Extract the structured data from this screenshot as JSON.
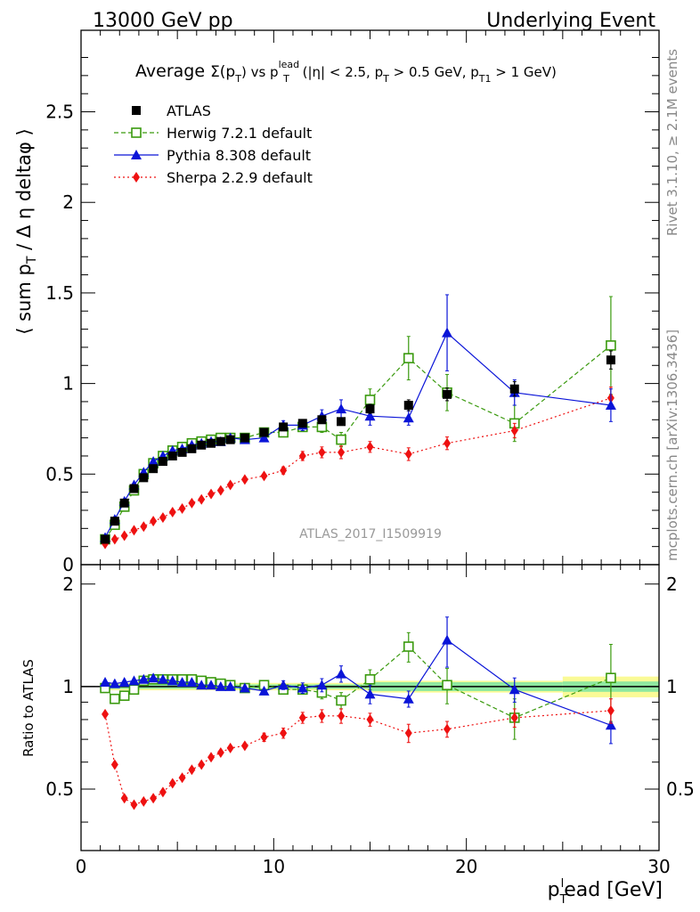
{
  "header": {
    "left": "13000 GeV pp",
    "right": "Underlying Event"
  },
  "side_labels": {
    "rivet": "Rivet 3.1.10, ≥ 2.1M events",
    "mcplots": "mcplots.cern.ch [arXiv:1306.3436]"
  },
  "watermark": "ATLAS_2017_I1509919",
  "colors": {
    "atlas": "#000000",
    "herwig": "#3a9a0e",
    "pythia": "#0a14d8",
    "sherpa": "#ee1111",
    "band_yellow": "#fafa96",
    "band_green": "#8fe8a0"
  },
  "chart_data": [
    {
      "type": "line",
      "title": "Average Σ(pT) vs pT^lead (|η| < 2.5, pT > 0.5 GeV, pT1 > 1 GeV)",
      "title_parts": {
        "avg": "Average ",
        "sigma": "Σ(p",
        "sub_t1": "T",
        "close1": ") vs p",
        "sup_lead": "lead",
        "sub_t2": "T",
        "mid": " (|η| < 2.5, p",
        "sub_t3": "T",
        "mid2": " > 0.5 GeV, p",
        "sub_t4": "T1",
        "end": " > 1 GeV)"
      },
      "ylabel": "⟨ sum pT / Δη deltaφ ⟩",
      "ylabel_parts": {
        "a": "⟨ sum p",
        "sub": "T",
        "b": " / Δ η deltaφ ⟩"
      },
      "xlim": [
        0,
        30
      ],
      "ylim": [
        0,
        2.95
      ],
      "yticks": [
        0,
        0.5,
        1,
        1.5,
        2,
        2.5
      ],
      "ytick_labels": [
        "0",
        "0.5",
        "1",
        "1.5",
        "2",
        "2.5"
      ],
      "legend_position": "top-left",
      "series": [
        {
          "name": "ATLAS",
          "style": "data",
          "x": [
            1.25,
            1.75,
            2.25,
            2.75,
            3.25,
            3.75,
            4.25,
            4.75,
            5.25,
            5.75,
            6.25,
            6.75,
            7.25,
            7.75,
            8.5,
            9.5,
            10.5,
            11.5,
            12.5,
            13.5,
            15,
            17,
            19,
            22.5,
            27.5
          ],
          "y": [
            0.14,
            0.24,
            0.34,
            0.42,
            0.48,
            0.53,
            0.57,
            0.6,
            0.62,
            0.64,
            0.66,
            0.67,
            0.68,
            0.69,
            0.7,
            0.73,
            0.76,
            0.78,
            0.8,
            0.79,
            0.86,
            0.88,
            0.94,
            0.97,
            1.13
          ],
          "err": [
            0.005,
            0.006,
            0.007,
            0.008,
            0.008,
            0.008,
            0.008,
            0.009,
            0.009,
            0.009,
            0.01,
            0.01,
            0.01,
            0.01,
            0.01,
            0.012,
            0.015,
            0.018,
            0.02,
            0.02,
            0.025,
            0.03,
            0.035,
            0.04,
            0.05
          ]
        },
        {
          "name": "Herwig 7.2.1 default",
          "style": "open-square-dashed",
          "x": [
            1.25,
            1.75,
            2.25,
            2.75,
            3.25,
            3.75,
            4.25,
            4.75,
            5.25,
            5.75,
            6.25,
            6.75,
            7.25,
            7.75,
            8.5,
            9.5,
            10.5,
            11.5,
            12.5,
            13.5,
            15,
            17,
            19,
            22.5,
            27.5
          ],
          "y": [
            0.14,
            0.22,
            0.32,
            0.41,
            0.5,
            0.56,
            0.6,
            0.63,
            0.65,
            0.67,
            0.68,
            0.69,
            0.7,
            0.7,
            0.7,
            0.73,
            0.73,
            0.76,
            0.76,
            0.69,
            0.91,
            1.14,
            0.95,
            0.78,
            1.21
          ],
          "err": [
            0.005,
            0.006,
            0.007,
            0.008,
            0.008,
            0.008,
            0.009,
            0.009,
            0.01,
            0.01,
            0.01,
            0.01,
            0.01,
            0.01,
            0.012,
            0.015,
            0.02,
            0.025,
            0.03,
            0.04,
            0.06,
            0.12,
            0.1,
            0.1,
            0.27
          ]
        },
        {
          "name": "Pythia 8.308 default",
          "style": "filled-triangle-solid",
          "x": [
            1.25,
            1.75,
            2.25,
            2.75,
            3.25,
            3.75,
            4.25,
            4.75,
            5.25,
            5.75,
            6.25,
            6.75,
            7.25,
            7.75,
            8.5,
            9.5,
            10.5,
            11.5,
            12.5,
            13.5,
            15,
            17,
            19,
            22.5,
            27.5
          ],
          "y": [
            0.15,
            0.25,
            0.35,
            0.44,
            0.51,
            0.57,
            0.6,
            0.63,
            0.64,
            0.66,
            0.67,
            0.68,
            0.68,
            0.7,
            0.69,
            0.7,
            0.77,
            0.77,
            0.82,
            0.86,
            0.82,
            0.81,
            1.28,
            0.95,
            0.88
          ],
          "err": [
            0.005,
            0.006,
            0.007,
            0.008,
            0.008,
            0.008,
            0.009,
            0.009,
            0.01,
            0.01,
            0.01,
            0.01,
            0.01,
            0.01,
            0.012,
            0.015,
            0.025,
            0.03,
            0.035,
            0.05,
            0.05,
            0.04,
            0.21,
            0.07,
            0.09
          ]
        },
        {
          "name": "Sherpa 2.2.9 default",
          "style": "filled-diamond-dotted",
          "x": [
            1.25,
            1.75,
            2.25,
            2.75,
            3.25,
            3.75,
            4.25,
            4.75,
            5.25,
            5.75,
            6.25,
            6.75,
            7.25,
            7.75,
            8.5,
            9.5,
            10.5,
            11.5,
            12.5,
            13.5,
            15,
            17,
            19,
            22.5,
            27.5
          ],
          "y": [
            0.115,
            0.14,
            0.16,
            0.19,
            0.21,
            0.24,
            0.26,
            0.29,
            0.31,
            0.34,
            0.36,
            0.39,
            0.41,
            0.44,
            0.47,
            0.49,
            0.52,
            0.6,
            0.62,
            0.62,
            0.65,
            0.61,
            0.67,
            0.74,
            0.92
          ],
          "err": [
            0.004,
            0.005,
            0.005,
            0.006,
            0.006,
            0.006,
            0.007,
            0.007,
            0.007,
            0.008,
            0.008,
            0.009,
            0.01,
            0.01,
            0.012,
            0.015,
            0.02,
            0.025,
            0.03,
            0.035,
            0.03,
            0.035,
            0.035,
            0.04,
            0.06
          ]
        }
      ]
    },
    {
      "type": "line",
      "title": "",
      "ylabel": "Ratio to ATLAS",
      "xlabel": "pT lead [GeV]",
      "xlabel_parts": {
        "a": "p",
        "sub": "T",
        "sup": "l",
        "b": "ead [GeV]"
      },
      "xlim": [
        0,
        30
      ],
      "ylim": [
        0.33,
        2.28
      ],
      "yticks": [
        0.5,
        1,
        2
      ],
      "ytick_labels": [
        "0.5",
        "1",
        "2"
      ],
      "xticks": [
        0,
        10,
        20,
        30
      ],
      "xtick_labels": [
        "0",
        "10",
        "20",
        "30"
      ],
      "band": {
        "edges": [
          1,
          15,
          25,
          30
        ],
        "yellow": [
          [
            0.975,
            1.025
          ],
          [
            0.96,
            1.04
          ],
          [
            0.93,
            1.07
          ]
        ],
        "green": [
          [
            0.985,
            1.015
          ],
          [
            0.97,
            1.03
          ],
          [
            0.965,
            1.035
          ]
        ]
      },
      "series": [
        {
          "name": "Herwig 7.2.1 default",
          "x": [
            1.25,
            1.75,
            2.25,
            2.75,
            3.25,
            3.75,
            4.25,
            4.75,
            5.25,
            5.75,
            6.25,
            6.75,
            7.25,
            7.75,
            8.5,
            9.5,
            10.5,
            11.5,
            12.5,
            13.5,
            15,
            17,
            19,
            22.5,
            27.5
          ],
          "y": [
            0.99,
            0.92,
            0.94,
            0.98,
            1.04,
            1.05,
            1.05,
            1.05,
            1.05,
            1.05,
            1.04,
            1.03,
            1.02,
            1.01,
            0.99,
            1.01,
            0.98,
            0.98,
            0.96,
            0.91,
            1.05,
            1.31,
            1.01,
            0.81,
            1.06
          ],
          "err": [
            0.01,
            0.01,
            0.01,
            0.01,
            0.01,
            0.01,
            0.01,
            0.01,
            0.01,
            0.01,
            0.01,
            0.01,
            0.01,
            0.01,
            0.015,
            0.02,
            0.03,
            0.03,
            0.04,
            0.05,
            0.07,
            0.13,
            0.12,
            0.11,
            0.27
          ]
        },
        {
          "name": "Pythia 8.308 default",
          "x": [
            1.25,
            1.75,
            2.25,
            2.75,
            3.25,
            3.75,
            4.25,
            4.75,
            5.25,
            5.75,
            6.25,
            6.75,
            7.25,
            7.75,
            8.5,
            9.5,
            10.5,
            11.5,
            12.5,
            13.5,
            15,
            17,
            19,
            22.5,
            27.5
          ],
          "y": [
            1.03,
            1.02,
            1.03,
            1.04,
            1.05,
            1.06,
            1.05,
            1.04,
            1.03,
            1.03,
            1.01,
            1.01,
            1.0,
            1.0,
            0.99,
            0.97,
            1.01,
            0.99,
            1.01,
            1.09,
            0.95,
            0.92,
            1.37,
            0.98,
            0.77
          ],
          "err": [
            0.01,
            0.01,
            0.01,
            0.01,
            0.01,
            0.01,
            0.01,
            0.01,
            0.01,
            0.01,
            0.01,
            0.01,
            0.01,
            0.01,
            0.015,
            0.02,
            0.03,
            0.035,
            0.045,
            0.06,
            0.06,
            0.05,
            0.23,
            0.08,
            0.09
          ]
        },
        {
          "name": "Sherpa 2.2.9 default",
          "x": [
            1.25,
            1.75,
            2.25,
            2.75,
            3.25,
            3.75,
            4.25,
            4.75,
            5.25,
            5.75,
            6.25,
            6.75,
            7.25,
            7.75,
            8.5,
            9.5,
            10.5,
            11.5,
            12.5,
            13.5,
            15,
            17,
            19,
            22.5,
            27.5
          ],
          "y": [
            0.83,
            0.59,
            0.47,
            0.45,
            0.46,
            0.47,
            0.49,
            0.52,
            0.54,
            0.57,
            0.59,
            0.62,
            0.64,
            0.66,
            0.67,
            0.71,
            0.73,
            0.81,
            0.82,
            0.82,
            0.8,
            0.73,
            0.75,
            0.81,
            0.85
          ],
          "err": [
            0.01,
            0.01,
            0.01,
            0.01,
            0.01,
            0.01,
            0.01,
            0.01,
            0.01,
            0.01,
            0.01,
            0.01,
            0.01,
            0.01,
            0.015,
            0.02,
            0.025,
            0.03,
            0.035,
            0.04,
            0.035,
            0.045,
            0.04,
            0.05,
            0.07
          ]
        }
      ]
    }
  ]
}
